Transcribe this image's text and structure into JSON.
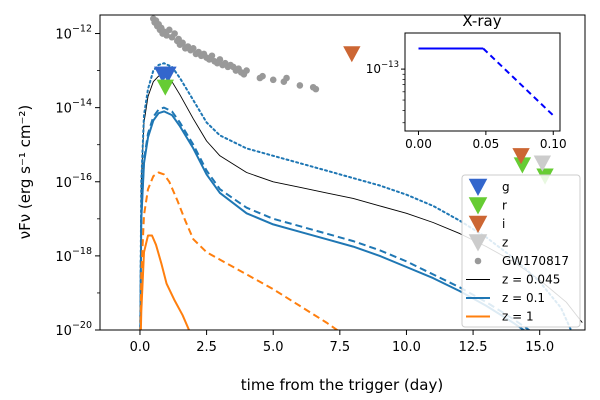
{
  "chart_data": {
    "type": "line",
    "title": "",
    "xlabel": "time from the trigger (day)",
    "ylabel": "νFν (erg s⁻¹ cm⁻²)",
    "xlim": [
      -1.5,
      16.7
    ],
    "ylim_log10": [
      -20,
      -11.5
    ],
    "x_ticks": [
      0.0,
      2.5,
      5.0,
      7.5,
      10.0,
      12.5,
      15.0
    ],
    "x_tick_labels": [
      "0.0",
      "2.5",
      "5.0",
      "7.5",
      "10.0",
      "12.5",
      "15.0"
    ],
    "y_ticks_log10": [
      -20,
      -18,
      -16,
      -14,
      -12
    ],
    "y_tick_bases": [
      "10",
      "10",
      "10",
      "10",
      "10"
    ],
    "y_tick_exponents": [
      "−20",
      "−18",
      "−16",
      "−14",
      "−12"
    ],
    "series": [
      {
        "name": "z = 0.045",
        "color": "#000000",
        "style": "solid",
        "x": [
          0.0,
          0.05,
          0.15,
          0.3,
          0.5,
          0.7,
          0.9,
          1.2,
          1.5,
          2.0,
          2.5,
          3.0,
          4.0,
          5.0,
          6.0,
          7.0,
          8.0,
          9.0,
          10.0,
          11.0,
          12.0,
          13.0,
          14.0,
          15.0,
          16.0,
          16.6
        ],
        "y": [
          -21,
          -16.0,
          -14.4,
          -13.7,
          -13.3,
          -13.15,
          -13.15,
          -13.3,
          -13.65,
          -14.3,
          -14.9,
          -15.3,
          -15.75,
          -16.0,
          -16.15,
          -16.3,
          -16.45,
          -16.65,
          -16.85,
          -17.1,
          -17.4,
          -17.75,
          -18.15,
          -18.65,
          -19.25,
          -19.8
        ]
      },
      {
        "name": "z = 0.1",
        "color": "#1f77b4",
        "style": "solid",
        "x": [
          0.0,
          0.05,
          0.15,
          0.3,
          0.5,
          0.7,
          0.9,
          1.2,
          1.5,
          2.0,
          2.5,
          3.0,
          4.0,
          5.0,
          6.0,
          7.0,
          8.0,
          9.0,
          10.0,
          11.0,
          12.0,
          13.0,
          14.0,
          14.6,
          15.2
        ],
        "y": [
          -21,
          -17.0,
          -15.5,
          -14.8,
          -14.35,
          -14.15,
          -14.1,
          -14.2,
          -14.5,
          -15.1,
          -15.8,
          -16.3,
          -16.85,
          -17.15,
          -17.35,
          -17.55,
          -17.75,
          -18.0,
          -18.3,
          -18.6,
          -18.95,
          -19.35,
          -19.8,
          -20.1,
          -20.6
        ]
      },
      {
        "name": "z = 0.1 (dashed)",
        "color": "#1f77b4",
        "style": "dashed",
        "x": [
          0.0,
          0.05,
          0.15,
          0.3,
          0.5,
          0.7,
          0.9,
          1.2,
          1.5,
          2.0,
          2.5,
          3.0,
          4.0,
          5.0,
          6.0,
          7.0,
          8.0,
          9.0,
          10.0,
          11.0,
          12.0,
          13.0,
          14.0,
          14.8,
          15.3
        ],
        "y": [
          -21,
          -16.9,
          -15.4,
          -14.7,
          -14.25,
          -14.05,
          -14.0,
          -14.1,
          -14.4,
          -15.0,
          -15.7,
          -16.2,
          -16.7,
          -17.0,
          -17.2,
          -17.4,
          -17.6,
          -17.85,
          -18.15,
          -18.5,
          -18.85,
          -19.25,
          -19.7,
          -20.1,
          -20.6
        ]
      },
      {
        "name": "z = 0.1 (dotted)",
        "color": "#1f77b4",
        "style": "dotted",
        "x": [
          0.0,
          0.05,
          0.15,
          0.3,
          0.5,
          0.7,
          0.9,
          1.2,
          1.5,
          2.0,
          2.5,
          3.0,
          4.0,
          5.0,
          6.0,
          7.0,
          8.0,
          9.0,
          10.0,
          11.0,
          12.0,
          13.0,
          14.0,
          15.0,
          15.8,
          16.3
        ],
        "y": [
          -21,
          -16.0,
          -14.2,
          -13.5,
          -13.0,
          -12.85,
          -12.8,
          -12.9,
          -13.2,
          -13.8,
          -14.4,
          -14.75,
          -15.1,
          -15.3,
          -15.5,
          -15.7,
          -15.9,
          -16.1,
          -16.35,
          -16.65,
          -17.05,
          -17.5,
          -18.05,
          -18.7,
          -19.4,
          -20.2
        ]
      },
      {
        "name": "z = 1",
        "color": "#ff7f0e",
        "style": "solid",
        "x": [
          0.0,
          0.05,
          0.15,
          0.3,
          0.45,
          0.6,
          0.8,
          1.0,
          1.3,
          1.6,
          1.9,
          2.2
        ],
        "y": [
          -21,
          -19.5,
          -17.9,
          -17.45,
          -17.45,
          -17.7,
          -18.2,
          -18.75,
          -19.2,
          -19.6,
          -20.1,
          -20.7
        ]
      },
      {
        "name": "z = 1 (dashed)",
        "color": "#ff7f0e",
        "style": "dashed",
        "x": [
          0.0,
          0.05,
          0.15,
          0.3,
          0.5,
          0.7,
          0.9,
          1.1,
          1.4,
          1.7,
          2.0,
          2.5,
          3.0,
          4.0,
          5.0,
          6.0,
          7.0,
          7.5,
          8.1
        ],
        "y": [
          -21,
          -18.5,
          -16.9,
          -16.2,
          -15.85,
          -15.75,
          -15.8,
          -16.0,
          -16.5,
          -17.05,
          -17.55,
          -17.9,
          -18.1,
          -18.5,
          -18.9,
          -19.35,
          -19.8,
          -20.05,
          -20.4
        ]
      }
    ],
    "gw170817": {
      "x": [
        0.5,
        0.55,
        0.6,
        0.65,
        0.7,
        0.75,
        0.8,
        0.85,
        0.9,
        1.0,
        1.1,
        1.2,
        1.3,
        1.4,
        1.45,
        1.5,
        1.6,
        1.7,
        1.8,
        1.9,
        2.0,
        2.1,
        2.2,
        2.3,
        2.4,
        2.5,
        2.6,
        2.7,
        2.8,
        2.9,
        3.0,
        3.1,
        3.2,
        3.3,
        3.4,
        3.5,
        3.6,
        3.7,
        3.8,
        3.9,
        4.0,
        4.5,
        4.6,
        5.0,
        5.4,
        5.5,
        6.0,
        6.5,
        6.6
      ],
      "y": [
        -11.6,
        -11.7,
        -11.65,
        -11.8,
        -11.75,
        -11.9,
        -11.85,
        -12.0,
        -11.95,
        -12.05,
        -11.9,
        -12.1,
        -12.0,
        -12.2,
        -12.15,
        -12.3,
        -12.25,
        -12.4,
        -12.35,
        -12.45,
        -12.4,
        -12.55,
        -12.5,
        -12.6,
        -12.55,
        -12.65,
        -12.7,
        -12.6,
        -12.75,
        -12.8,
        -12.7,
        -12.85,
        -12.8,
        -12.9,
        -12.85,
        -12.9,
        -13.0,
        -12.95,
        -13.05,
        -13.1,
        -13.0,
        -13.2,
        -13.15,
        -13.25,
        -13.3,
        -13.2,
        -13.4,
        -13.45,
        -13.5
      ]
    },
    "markers": [
      {
        "band": "g",
        "color": "#3366cc",
        "x": 0.85,
        "y": -13.1
      },
      {
        "band": "g",
        "color": "#3366cc",
        "x": 1.05,
        "y": -13.1
      },
      {
        "band": "r",
        "color": "#66cc33",
        "x": 0.95,
        "y": -13.45
      },
      {
        "band": "r",
        "color": "#66cc33",
        "x": 14.35,
        "y": -15.55
      },
      {
        "band": "r",
        "color": "#66cc33",
        "x": 15.2,
        "y": -15.85
      },
      {
        "band": "i",
        "color": "#cc6633",
        "x": 7.95,
        "y": -12.55
      },
      {
        "band": "i",
        "color": "#cc6633",
        "x": 14.3,
        "y": -15.3
      },
      {
        "band": "z",
        "color": "#cccccc",
        "x": 15.1,
        "y": -15.5
      }
    ],
    "legend": {
      "placement": "bottom-right",
      "entries": [
        {
          "label": "g",
          "kind": "triangle",
          "color": "#3366cc"
        },
        {
          "label": "r",
          "kind": "triangle",
          "color": "#66cc33"
        },
        {
          "label": "i",
          "kind": "triangle",
          "color": "#cc6633"
        },
        {
          "label": "z",
          "kind": "triangle",
          "color": "#cccccc"
        },
        {
          "label": "GW170817",
          "kind": "dot",
          "color": "#999999"
        },
        {
          "label": "z = 0.045",
          "kind": "line",
          "color": "#000000"
        },
        {
          "label": "z = 0.1",
          "kind": "line",
          "color": "#1f77b4"
        },
        {
          "label": "z = 1",
          "kind": "line",
          "color": "#ff7f0e"
        }
      ]
    },
    "inset": {
      "title": "X-ray",
      "xlim": [
        -0.01,
        0.105
      ],
      "ylim_log10": [
        -13.6,
        -12.65
      ],
      "x_ticks": [
        0.0,
        0.05,
        0.1
      ],
      "x_tick_labels": [
        "0.00",
        "0.05",
        "0.10"
      ],
      "y_tick_log10": -13,
      "y_tick_base": "10",
      "y_tick_exponent": "−13",
      "solid": {
        "x": [
          0.0,
          0.048
        ],
        "y": [
          -12.8,
          -12.8
        ],
        "color": "#0000ff"
      },
      "dashed": {
        "x": [
          0.048,
          0.1
        ],
        "y": [
          -12.8,
          -13.45
        ],
        "color": "#0000ff"
      }
    }
  }
}
